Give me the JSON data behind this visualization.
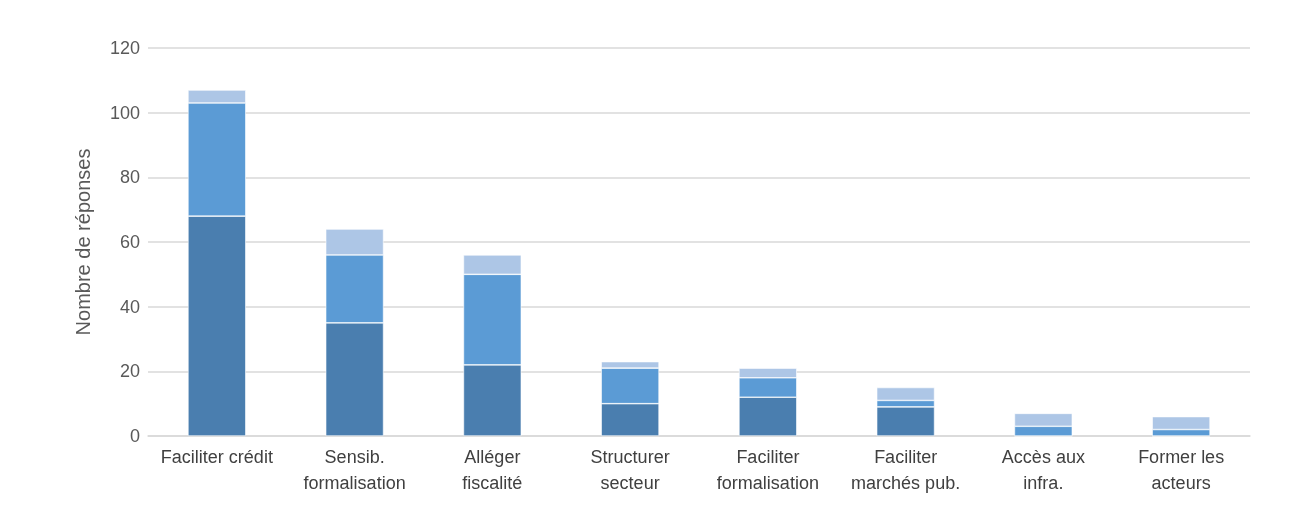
{
  "chart_data": {
    "type": "bar",
    "stacked": true,
    "ylabel": "Nombre de réponses",
    "categories": [
      "Faciliter crédit",
      "Sensib.\nformalisation",
      "Alléger\nfiscalité",
      "Structurer\nsecteur",
      "Faciliter\nformalisation",
      "Faciliter\nmarchés pub.",
      "Accès aux\ninfra.",
      "Former les\nacteurs"
    ],
    "series": [
      {
        "color": "#4a7eaf",
        "values": [
          68,
          35,
          22,
          10,
          12,
          9,
          0,
          0
        ]
      },
      {
        "color": "#5b9bd5",
        "values": [
          35,
          21,
          28,
          11,
          6,
          2,
          3,
          2
        ]
      },
      {
        "color": "#adc6e6",
        "values": [
          4,
          8,
          6,
          2,
          3,
          4,
          4,
          4
        ]
      }
    ],
    "ylim": [
      0,
      120
    ],
    "yticks": [
      0,
      20,
      40,
      60,
      80,
      100,
      120
    ],
    "grid": "y"
  }
}
